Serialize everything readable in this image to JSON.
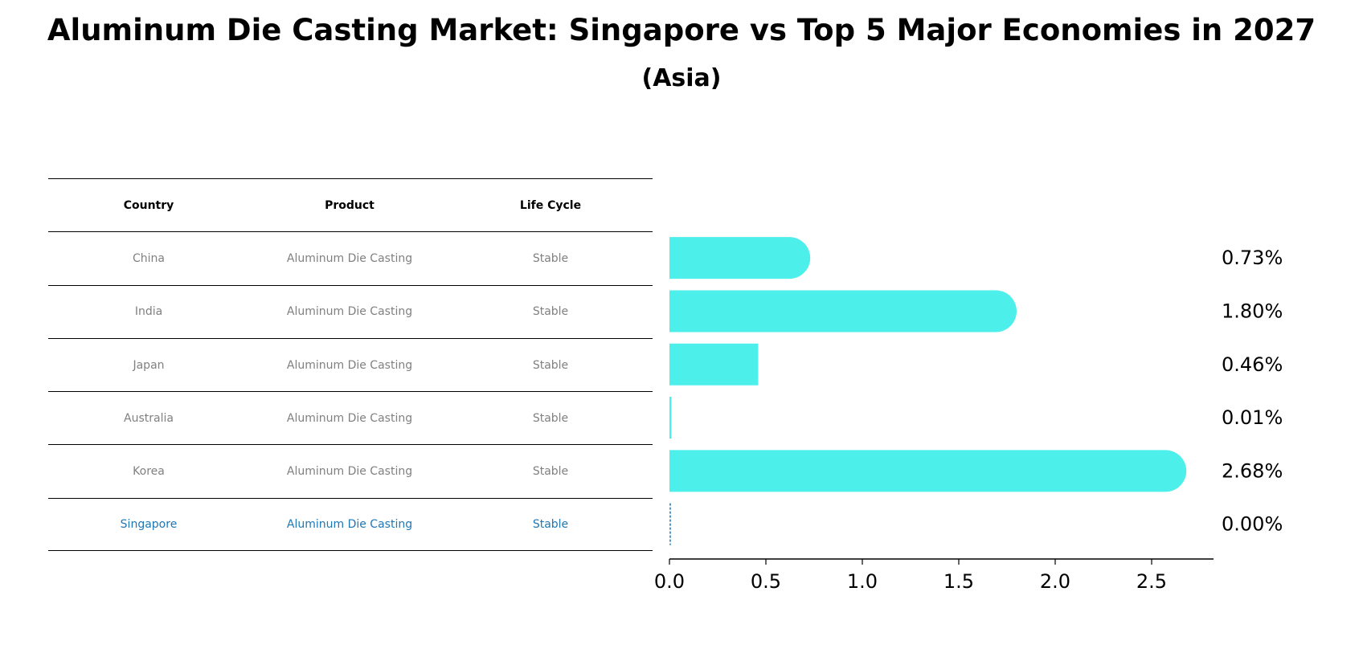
{
  "title": "Aluminum Die Casting Market: Singapore vs Top 5 Major Economies in 2027",
  "subtitle": "(Asia)",
  "table": {
    "headers": [
      "Country",
      "Product",
      "Life Cycle"
    ],
    "rows": [
      [
        "China",
        "Aluminum Die Casting",
        "Stable"
      ],
      [
        "India",
        "Aluminum Die Casting",
        "Stable"
      ],
      [
        "Japan",
        "Aluminum Die Casting",
        "Stable"
      ],
      [
        "Australia",
        "Aluminum Die Casting",
        "Stable"
      ],
      [
        "Korea",
        "Aluminum Die Casting",
        "Stable"
      ],
      [
        "Singapore",
        "Aluminum Die Casting",
        "Stable"
      ]
    ]
  },
  "colors": {
    "bar": "#4cefea",
    "highlight": "#1f77b4",
    "muted": "#808080"
  },
  "chart_data": {
    "type": "bar",
    "orientation": "horizontal",
    "title": "Aluminum Die Casting Market: Singapore vs Top 5 Major Economies in 2027",
    "subtitle": "(Asia)",
    "categories": [
      "China",
      "India",
      "Japan",
      "Australia",
      "Korea",
      "Singapore"
    ],
    "values": [
      0.73,
      1.8,
      0.46,
      0.01,
      2.68,
      0.0
    ],
    "value_labels": [
      "0.73%",
      "1.80%",
      "0.46%",
      "0.01%",
      "2.68%",
      "0.00%"
    ],
    "xlim": [
      0,
      2.8
    ],
    "xticks": [
      0.0,
      0.5,
      1.0,
      1.5,
      2.0,
      2.5
    ],
    "xtick_labels": [
      "0.0",
      "0.5",
      "1.0",
      "1.5",
      "2.0",
      "2.5"
    ],
    "xlabel": "",
    "ylabel": "",
    "grid": false
  }
}
